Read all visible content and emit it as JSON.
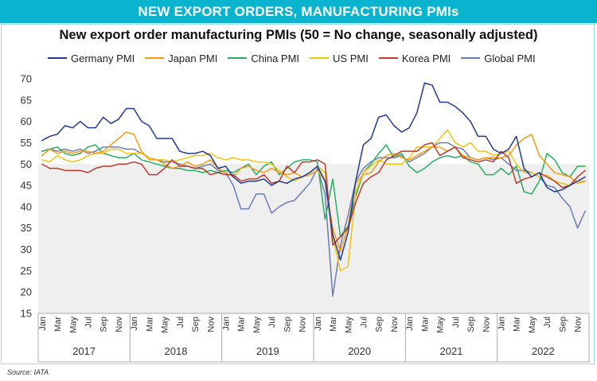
{
  "banner": "NEW EXPORT ORDERS, MANUFACTURING PMIs",
  "source": "Source: IATA",
  "chart_data": {
    "type": "line",
    "title": "New export order manufacturing PMIs (50 = No change, seasonally adjusted)",
    "xlabel": "",
    "ylabel": "",
    "ylim": [
      15,
      70
    ],
    "yticks": [
      15,
      20,
      25,
      30,
      35,
      40,
      45,
      50,
      55,
      60,
      65,
      70
    ],
    "grid": false,
    "legend_position": "top",
    "reference_band": {
      "from": 15,
      "to": 50,
      "color": "#efefef"
    },
    "month_tick_labels": [
      "Jan",
      "Mar",
      "May",
      "Jul",
      "Sep",
      "Nov"
    ],
    "years": [
      "2017",
      "2018",
      "2019",
      "2020",
      "2021",
      "2022"
    ],
    "x": [
      "2017-01",
      "2017-02",
      "2017-03",
      "2017-04",
      "2017-05",
      "2017-06",
      "2017-07",
      "2017-08",
      "2017-09",
      "2017-10",
      "2017-11",
      "2017-12",
      "2018-01",
      "2018-02",
      "2018-03",
      "2018-04",
      "2018-05",
      "2018-06",
      "2018-07",
      "2018-08",
      "2018-09",
      "2018-10",
      "2018-11",
      "2018-12",
      "2019-01",
      "2019-02",
      "2019-03",
      "2019-04",
      "2019-05",
      "2019-06",
      "2019-07",
      "2019-08",
      "2019-09",
      "2019-10",
      "2019-11",
      "2019-12",
      "2020-01",
      "2020-02",
      "2020-03",
      "2020-04",
      "2020-05",
      "2020-06",
      "2020-07",
      "2020-08",
      "2020-09",
      "2020-10",
      "2020-11",
      "2020-12",
      "2021-01",
      "2021-02",
      "2021-03",
      "2021-04",
      "2021-05",
      "2021-06",
      "2021-07",
      "2021-08",
      "2021-09",
      "2021-10",
      "2021-11",
      "2021-12",
      "2022-01",
      "2022-02",
      "2022-03",
      "2022-04",
      "2022-05",
      "2022-06",
      "2022-07",
      "2022-08",
      "2022-09",
      "2022-10",
      "2022-11",
      "2022-12"
    ],
    "series": [
      {
        "name": "Germany PMI",
        "color": "#1f3a93",
        "values": [
          55.5,
          56.5,
          57,
          59,
          58.5,
          60,
          58.5,
          58.5,
          61,
          59.5,
          60.5,
          63,
          63,
          60,
          59,
          56,
          56,
          56,
          53,
          52.5,
          52.5,
          53,
          52,
          49,
          49.5,
          47,
          45.5,
          46,
          46,
          46.5,
          45,
          46,
          45.5,
          46.5,
          47,
          48,
          49.5,
          46,
          33.5,
          27.5,
          34,
          46,
          54.5,
          56,
          61,
          61.5,
          59,
          57.5,
          58.5,
          62,
          69,
          68.5,
          64.5,
          64.5,
          63.5,
          62,
          60,
          56.5,
          56.5,
          53.5,
          52.5,
          53.5,
          56.5,
          49,
          47,
          48,
          44.5,
          43.5,
          44,
          45,
          46,
          47
        ]
      },
      {
        "name": "Japan PMI",
        "color": "#f39c12",
        "values": [
          52,
          53.5,
          52.5,
          53,
          52.5,
          53,
          53,
          52.5,
          53,
          54.5,
          56,
          57.5,
          57,
          53,
          51,
          51,
          50,
          49,
          49.5,
          50.5,
          49.5,
          50,
          51,
          49,
          48,
          47,
          49,
          49.5,
          48.5,
          48,
          49,
          48,
          47.5,
          48,
          47,
          47.5,
          48.5,
          46,
          35,
          29.5,
          35.5,
          45.5,
          47.5,
          48,
          50.5,
          52,
          52.5,
          51.5,
          51,
          52,
          53,
          54,
          54,
          53,
          54,
          52,
          51.5,
          51,
          51.5,
          51.5,
          51.5,
          52,
          54.5,
          56,
          57,
          52,
          50,
          48,
          47.5,
          47,
          45.5,
          46
        ]
      },
      {
        "name": "China PMI",
        "color": "#27ae60",
        "values": [
          53,
          53.5,
          54,
          52.5,
          52,
          52.5,
          54,
          54.5,
          52.5,
          52,
          51.5,
          51.5,
          52.5,
          51,
          50.5,
          50,
          49.5,
          49,
          49,
          48.5,
          48.5,
          48,
          48.5,
          48,
          48.5,
          48,
          49,
          50,
          47.5,
          49.5,
          50.5,
          47.5,
          49,
          50.5,
          51,
          51,
          50.5,
          37,
          46.5,
          33,
          35.5,
          42.5,
          48,
          50,
          52.5,
          54.5,
          51.5,
          52.5,
          49.5,
          48,
          49,
          50.5,
          51.5,
          52,
          51.5,
          52,
          50.5,
          50,
          47.5,
          47.5,
          49,
          47.5,
          49.5,
          43.5,
          43,
          46,
          52.5,
          51,
          48,
          47,
          49.5,
          49.5
        ]
      },
      {
        "name": "US PMI",
        "color": "#f1c40f",
        "values": [
          51,
          50.5,
          52,
          51,
          50.5,
          51,
          52,
          52.5,
          52.5,
          53.5,
          53.5,
          52.5,
          52.5,
          52.5,
          51.5,
          51,
          51,
          50.5,
          51,
          51.5,
          52,
          52,
          52.5,
          51.5,
          51,
          51.5,
          51,
          51,
          50.5,
          50.5,
          50,
          48.5,
          47,
          46,
          47,
          48,
          49.5,
          48,
          33,
          25,
          26,
          43.5,
          48,
          49.5,
          51,
          50,
          50,
          50,
          51.5,
          54,
          54,
          54,
          56,
          58,
          55,
          54,
          55,
          53,
          53,
          52,
          52.5,
          53,
          50,
          48,
          48,
          47,
          47.5,
          46,
          45.5,
          45,
          46,
          46
        ]
      },
      {
        "name": "Korea PMI",
        "color": "#c0392b",
        "values": [
          50,
          49,
          49,
          48.5,
          48.5,
          48.5,
          48,
          49,
          49.5,
          49.5,
          50,
          50,
          50.5,
          50,
          47.5,
          47.5,
          49,
          51,
          49.5,
          49.5,
          49,
          49,
          47.5,
          48,
          47.5,
          47.5,
          46,
          46.5,
          46.5,
          47.5,
          45.5,
          46,
          49.5,
          48,
          50.5,
          50.5,
          51,
          50,
          31,
          33,
          35,
          41,
          45.5,
          47,
          48,
          51,
          52,
          53,
          53,
          53,
          54.5,
          55,
          52,
          53,
          54,
          51.5,
          51,
          50.5,
          51,
          50.5,
          53,
          51.5,
          45.5,
          46.5,
          47,
          48,
          47,
          46,
          44.5,
          45,
          47,
          48.5
        ]
      },
      {
        "name": "Global PMI",
        "color": "#6b7db3",
        "values": [
          53,
          53.5,
          53,
          53.5,
          53,
          53.5,
          52.5,
          53,
          54,
          54,
          54,
          53.5,
          53.5,
          52.5,
          51.5,
          51,
          50.5,
          50.5,
          50,
          49.5,
          49,
          49.5,
          50,
          48.5,
          48,
          45,
          39.5,
          39.5,
          43,
          43,
          38.5,
          40,
          41,
          41.5,
          43.5,
          45.5,
          49,
          43,
          19,
          31,
          38,
          46,
          49,
          50.5,
          51.5,
          51.5,
          51.5,
          52,
          50.5,
          51.5,
          52.5,
          54,
          55,
          55,
          54,
          53.5,
          51.5,
          51,
          51.5,
          51,
          51.5,
          50,
          48.5,
          48.5,
          48,
          47,
          45,
          44.5,
          42,
          40,
          35,
          39
        ]
      }
    ]
  }
}
